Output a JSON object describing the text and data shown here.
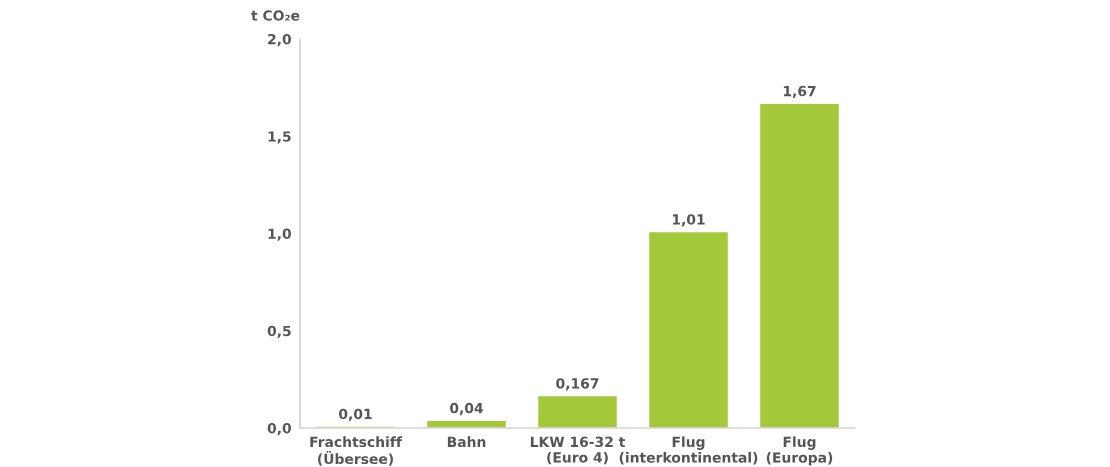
{
  "chart_data": {
    "type": "bar",
    "ylabel": "t CO₂e",
    "categories": [
      "Frachtschiff\n(Übersee)",
      "Bahn",
      "LKW 16-32 t\n(Euro 4)",
      "Flug\n(interkontinental)",
      "Flug\n(Europa)"
    ],
    "values": [
      0.01,
      0.04,
      0.167,
      1.01,
      1.67
    ],
    "value_labels": [
      "0,01",
      "0,04",
      "0,167",
      "1,01",
      "1,67"
    ],
    "color": "#a5c83a",
    "ylim": [
      0,
      2.0
    ],
    "yticks": [
      {
        "value": 0,
        "label": "0,0"
      },
      {
        "value": 0.5,
        "label": "0,5"
      },
      {
        "value": 1.0,
        "label": "1,0"
      },
      {
        "value": 1.5,
        "label": "1,5"
      },
      {
        "value": 2.0,
        "label": "2,0"
      }
    ],
    "grid": false,
    "legend": false
  }
}
